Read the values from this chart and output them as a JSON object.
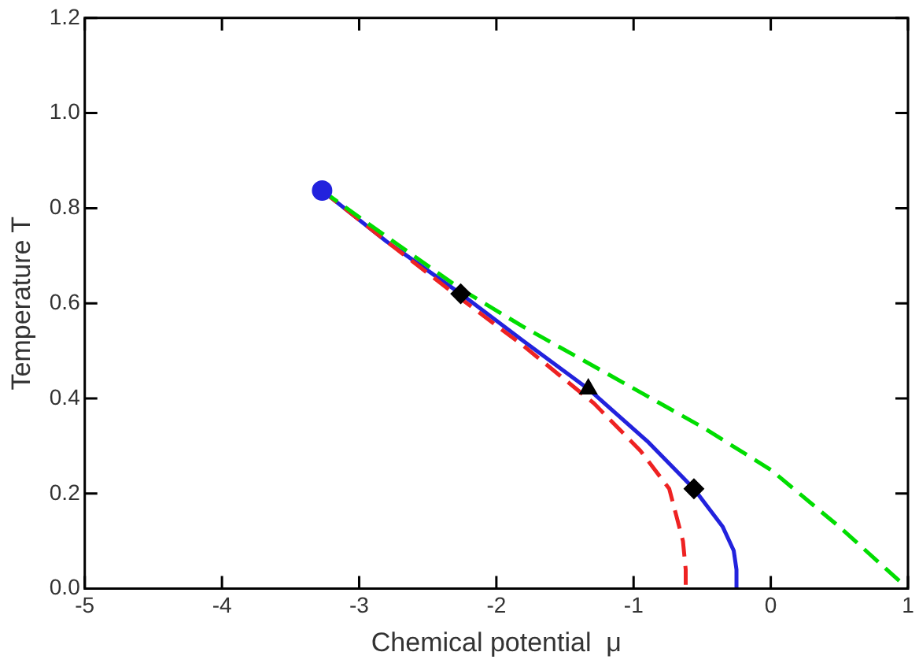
{
  "chart_data": {
    "type": "line",
    "xlabel": "Chemical potential  μ",
    "ylabel": "Temperature T",
    "xlim": [
      -5,
      1
    ],
    "ylim": [
      0,
      1.2
    ],
    "xticks": [
      -5,
      -4,
      -3,
      -2,
      -1,
      0,
      1
    ],
    "yticks": [
      {
        "value": 0,
        "label": "0.0"
      },
      {
        "value": 0.2,
        "label": "0.2"
      },
      {
        "value": 0.4,
        "label": "0.4"
      },
      {
        "value": 0.6,
        "label": "0.6"
      },
      {
        "value": 0.8,
        "label": "0.8"
      },
      {
        "value": 1,
        "label": "1.0"
      },
      {
        "value": 1.2,
        "label": "1.2"
      }
    ],
    "grid": false,
    "legend": false,
    "series": [
      {
        "color": "#00dd00",
        "line_style": "dashed",
        "marker": "none",
        "x": [
          -3.27,
          -2.8,
          -2.26,
          -1.8,
          -1.18,
          -0.5,
          0,
          0.5,
          1
        ],
        "values": [
          0.837,
          0.74,
          0.63,
          0.55,
          0.45,
          0.34,
          0.25,
          0.13,
          0
        ]
      },
      {
        "color": "#ee2222",
        "line_style": "dashed",
        "marker": "none",
        "x": [
          -3.27,
          -2.8,
          -2.26,
          -1.8,
          -1.29,
          -0.95,
          -0.74,
          -0.64,
          -0.62,
          -0.62
        ],
        "values": [
          0.837,
          0.73,
          0.61,
          0.51,
          0.39,
          0.29,
          0.21,
          0.1,
          0.04,
          0
        ]
      },
      {
        "color": "#2222dd",
        "line_style": "solid",
        "marker": "none",
        "x": [
          -3.27,
          -2.8,
          -2.26,
          -1.8,
          -1.33,
          -0.9,
          -0.56,
          -0.35,
          -0.27,
          -0.25,
          -0.25
        ],
        "values": [
          0.837,
          0.73,
          0.62,
          0.52,
          0.42,
          0.31,
          0.21,
          0.13,
          0.08,
          0.04,
          0
        ]
      },
      {
        "type": "scatter",
        "color": "#2222dd",
        "marker": "circle",
        "x": [
          -3.27
        ],
        "values": [
          0.837
        ]
      },
      {
        "type": "scatter",
        "color": "#000000",
        "marker": "diamond",
        "x": [
          -2.26,
          -0.56
        ],
        "values": [
          0.62,
          0.21
        ]
      },
      {
        "type": "scatter",
        "color": "#000000",
        "marker": "triangle",
        "x": [
          -1.33
        ],
        "values": [
          0.42
        ]
      }
    ]
  }
}
